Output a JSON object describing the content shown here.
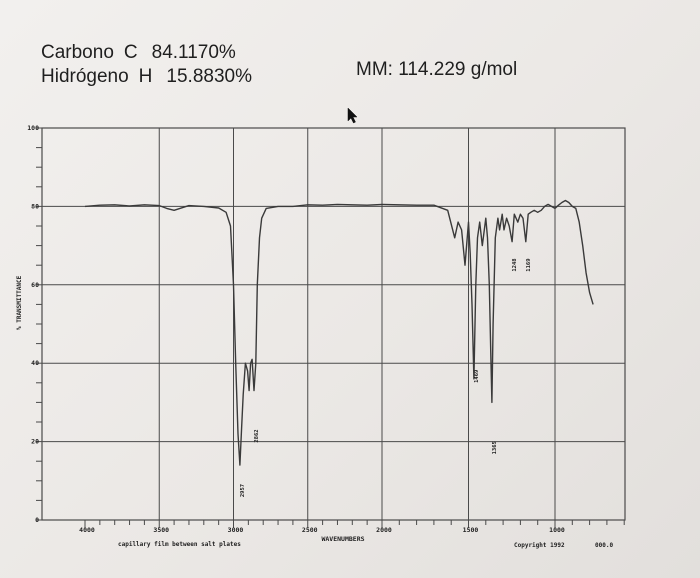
{
  "header": {
    "elements": [
      {
        "name": "Carbono",
        "symbol": "C",
        "percent": "84.1170%"
      },
      {
        "name": "Hidrógeno",
        "symbol": "H",
        "percent": "15.8830%"
      }
    ],
    "molar_mass": "MM: 114.229 g/mol"
  },
  "footer": {
    "sample_note": "capillary film between salt plates",
    "copyright": "Copyright 1992",
    "code": "000.0"
  },
  "colors": {
    "trace": "#3a3a3a",
    "grid": "#4a4a4a",
    "ink": "#1f1f1f"
  },
  "chart_data": {
    "type": "line",
    "xlabel": "WAVENUMBERS",
    "ylabel": "% TRANSMITTANCE",
    "x_reversed": true,
    "y_ticks": [
      {
        "value": 100,
        "label": "100"
      },
      {
        "value": 80,
        "label": "80"
      },
      {
        "value": 60,
        "label": "60"
      },
      {
        "value": 40,
        "label": "40"
      },
      {
        "value": 20,
        "label": "20"
      },
      {
        "value": 0,
        "label": "0"
      }
    ],
    "x_ticks": [
      {
        "value": 4000,
        "label": "4000"
      },
      {
        "value": 3500,
        "label": "3500"
      },
      {
        "value": 3000,
        "label": "3000"
      },
      {
        "value": 2500,
        "label": "2500"
      },
      {
        "value": 2000,
        "label": "2000"
      },
      {
        "value": 1500,
        "label": "1500"
      },
      {
        "value": 1000,
        "label": "1000"
      }
    ],
    "peak_labels": [
      {
        "x": 2957,
        "y": 14,
        "label": "2957"
      },
      {
        "x": 2862,
        "y": 33,
        "label": "2862"
      },
      {
        "x": 1469,
        "y": 36,
        "label": "1469"
      },
      {
        "x": 1365,
        "y": 30,
        "label": "1365"
      },
      {
        "x": 1248,
        "y": 71,
        "label": "1248"
      },
      {
        "x": 1169,
        "y": 71,
        "label": "1169"
      }
    ],
    "series": [
      {
        "points": [
          [
            4000,
            80
          ],
          [
            3900,
            80.3
          ],
          [
            3800,
            80.4
          ],
          [
            3700,
            80.1
          ],
          [
            3600,
            80.4
          ],
          [
            3500,
            80.2
          ],
          [
            3450,
            79.5
          ],
          [
            3400,
            79
          ],
          [
            3300,
            80.2
          ],
          [
            3200,
            80
          ],
          [
            3100,
            79.6
          ],
          [
            3050,
            78.5
          ],
          [
            3020,
            75
          ],
          [
            3000,
            60
          ],
          [
            2985,
            40
          ],
          [
            2970,
            22
          ],
          [
            2957,
            14
          ],
          [
            2945,
            24
          ],
          [
            2935,
            32
          ],
          [
            2920,
            40
          ],
          [
            2905,
            38
          ],
          [
            2895,
            33
          ],
          [
            2885,
            40
          ],
          [
            2875,
            41
          ],
          [
            2862,
            33
          ],
          [
            2850,
            40
          ],
          [
            2840,
            60
          ],
          [
            2825,
            72
          ],
          [
            2810,
            77
          ],
          [
            2780,
            79.5
          ],
          [
            2700,
            80
          ],
          [
            2600,
            80
          ],
          [
            2500,
            80.4
          ],
          [
            2400,
            80.3
          ],
          [
            2300,
            80.5
          ],
          [
            2200,
            80.4
          ],
          [
            2100,
            80.3
          ],
          [
            2000,
            80.5
          ],
          [
            1900,
            80.4
          ],
          [
            1800,
            80.3
          ],
          [
            1700,
            80.3
          ],
          [
            1620,
            79
          ],
          [
            1580,
            72
          ],
          [
            1560,
            76
          ],
          [
            1540,
            74
          ],
          [
            1520,
            65
          ],
          [
            1500,
            76
          ],
          [
            1490,
            68
          ],
          [
            1480,
            55
          ],
          [
            1469,
            36
          ],
          [
            1458,
            60
          ],
          [
            1448,
            72
          ],
          [
            1435,
            76
          ],
          [
            1420,
            70
          ],
          [
            1400,
            77
          ],
          [
            1390,
            72
          ],
          [
            1380,
            60
          ],
          [
            1370,
            40
          ],
          [
            1365,
            30
          ],
          [
            1358,
            50
          ],
          [
            1345,
            72
          ],
          [
            1330,
            77
          ],
          [
            1320,
            74
          ],
          [
            1305,
            78
          ],
          [
            1295,
            74
          ],
          [
            1280,
            77
          ],
          [
            1265,
            75
          ],
          [
            1248,
            71
          ],
          [
            1235,
            78
          ],
          [
            1215,
            76
          ],
          [
            1200,
            78
          ],
          [
            1185,
            77
          ],
          [
            1169,
            71
          ],
          [
            1155,
            78
          ],
          [
            1140,
            78.5
          ],
          [
            1120,
            79
          ],
          [
            1100,
            78.5
          ],
          [
            1080,
            79
          ],
          [
            1060,
            80
          ],
          [
            1040,
            80.5
          ],
          [
            1020,
            80
          ],
          [
            1000,
            79.5
          ],
          [
            980,
            80.3
          ],
          [
            960,
            81
          ],
          [
            940,
            81.5
          ],
          [
            920,
            81
          ],
          [
            900,
            80
          ],
          [
            880,
            79.5
          ],
          [
            860,
            76
          ],
          [
            840,
            70
          ],
          [
            820,
            63
          ],
          [
            800,
            58
          ],
          [
            780,
            55
          ]
        ]
      }
    ]
  }
}
